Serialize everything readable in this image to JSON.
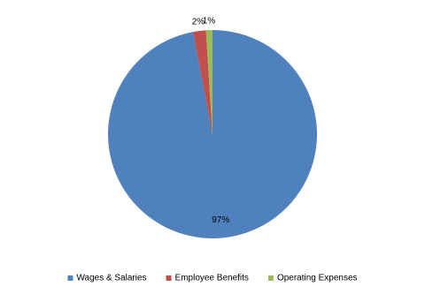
{
  "chart_data": {
    "type": "pie",
    "categories": [
      "Wages & Salaries",
      "Employee Benefits",
      "Operating Expenses"
    ],
    "values": [
      97,
      2,
      1
    ],
    "value_labels": [
      "97%",
      "2%",
      "1%"
    ],
    "colors": [
      "#4f81bd",
      "#c0504d",
      "#9bbb59"
    ],
    "legend": "bottom"
  }
}
